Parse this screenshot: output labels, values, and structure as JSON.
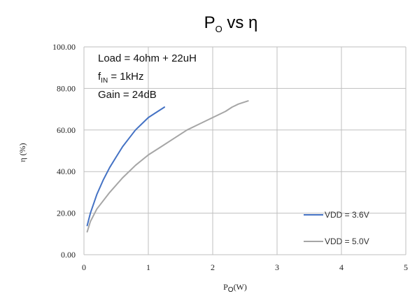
{
  "chart_data": {
    "type": "line",
    "title": {
      "main": "P",
      "sub": "O",
      "rest": " vs η"
    },
    "xlabel": {
      "main": "P",
      "sub": "O",
      "rest": "(W)"
    },
    "ylabel": "η (%)",
    "xlim": [
      0,
      5
    ],
    "ylim": [
      0,
      100
    ],
    "x_ticks": [
      "0",
      "1",
      "2",
      "3",
      "4",
      "5"
    ],
    "y_ticks": [
      "0.00",
      "20.00",
      "40.00",
      "60.00",
      "80.00",
      "100.00"
    ],
    "grid": true,
    "annotations": [
      {
        "main": "Load = 4ohm + 22uH",
        "sub": "",
        "rest": ""
      },
      {
        "main": "f",
        "sub": "IN",
        "rest": " = 1kHz"
      },
      {
        "main": "Gain = 24dB",
        "sub": "",
        "rest": ""
      }
    ],
    "legend_position": "bottom-right",
    "series": [
      {
        "name": "VDD = 3.6V",
        "color": "#4472c4",
        "x": [
          0.05,
          0.1,
          0.2,
          0.3,
          0.4,
          0.5,
          0.6,
          0.7,
          0.8,
          0.9,
          1.0,
          1.1,
          1.25
        ],
        "y": [
          14,
          20,
          29,
          36,
          42,
          47,
          52,
          56,
          60,
          63,
          66,
          68,
          71
        ]
      },
      {
        "name": "VDD = 5.0V",
        "color": "#a6a6a6",
        "x": [
          0.05,
          0.1,
          0.2,
          0.4,
          0.6,
          0.8,
          1.0,
          1.2,
          1.4,
          1.6,
          1.8,
          2.0,
          2.2,
          2.3,
          2.4,
          2.55
        ],
        "y": [
          11,
          16,
          22,
          30,
          37,
          43,
          48,
          52,
          56,
          60,
          63,
          66,
          69,
          71,
          72.5,
          74
        ]
      }
    ]
  }
}
